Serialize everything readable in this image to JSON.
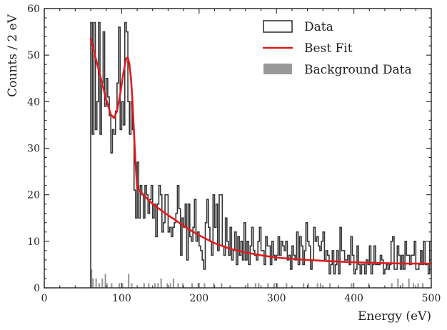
{
  "chart_data": {
    "type": "histogram",
    "xlabel": "Energy (eV)",
    "ylabel": "Counts / 2 eV",
    "xlim": [
      0,
      500
    ],
    "ylim": [
      0,
      60
    ],
    "x_ticks": [
      0,
      100,
      200,
      300,
      400,
      500
    ],
    "y_ticks": [
      0,
      10,
      20,
      30,
      40,
      50,
      60
    ],
    "bin_width": 2,
    "legend": {
      "position": "top-right",
      "entries": [
        {
          "label": "Data",
          "style": "step"
        },
        {
          "label": "Best Fit",
          "style": "line"
        },
        {
          "label": "Background Data",
          "style": "patch"
        }
      ]
    },
    "colors": {
      "data": "#333333",
      "fit": "#e31a1c",
      "background": "#999999"
    },
    "data": {
      "name": "Data",
      "x_start": 60,
      "counts": [
        57,
        33,
        57,
        34,
        40,
        57,
        33,
        44,
        55,
        39,
        45,
        41,
        37,
        29,
        34,
        33,
        38,
        44,
        56,
        34,
        40,
        35,
        57,
        55,
        40,
        33,
        40,
        34,
        21,
        15,
        27,
        15,
        22,
        20,
        15,
        22,
        20,
        16,
        19,
        22,
        15,
        18,
        11,
        18,
        22,
        20,
        12,
        14,
        20,
        20,
        12,
        13,
        11,
        13,
        14,
        16,
        22,
        17,
        7,
        15,
        13,
        18,
        6,
        18,
        11,
        10,
        13,
        19,
        10,
        12,
        9,
        8,
        6,
        4,
        14,
        19,
        13,
        10,
        7,
        20,
        13,
        18,
        8,
        20,
        20,
        9,
        7,
        15,
        10,
        7,
        13,
        6,
        8,
        12,
        5,
        11,
        7,
        10,
        6,
        14,
        6,
        10,
        5,
        9,
        13,
        8,
        7,
        6,
        10,
        13,
        8,
        8,
        5,
        11,
        9,
        9,
        5,
        10,
        7,
        6,
        7,
        11,
        7,
        10,
        9,
        8,
        10,
        6,
        7,
        4,
        9,
        7,
        6,
        12,
        5,
        11,
        9,
        5,
        8,
        14,
        10,
        9,
        4,
        6,
        13,
        10,
        11,
        9,
        8,
        10,
        12,
        6,
        8,
        7,
        3,
        5,
        8,
        3,
        5,
        8,
        3,
        13,
        8,
        8,
        6,
        6,
        7,
        5,
        11,
        7,
        3,
        4,
        9,
        5,
        3,
        5,
        5,
        3,
        6,
        5,
        9,
        3,
        5,
        9,
        5,
        5,
        5,
        7,
        6,
        3,
        4,
        5,
        4,
        5,
        10,
        11,
        4,
        4,
        9,
        7,
        4,
        7,
        4,
        10,
        7,
        7,
        5,
        7,
        7,
        10,
        4,
        4,
        5,
        8,
        5,
        10,
        5,
        5,
        3,
        10
      ]
    },
    "background": {
      "name": "Background Data",
      "bins": [
        [
          60,
          4
        ],
        [
          62,
          2
        ],
        [
          66,
          2
        ],
        [
          70,
          1
        ],
        [
          74,
          2
        ],
        [
          78,
          3
        ],
        [
          80,
          1
        ],
        [
          86,
          1
        ],
        [
          96,
          1
        ],
        [
          100,
          1
        ],
        [
          108,
          3
        ],
        [
          112,
          1
        ],
        [
          128,
          1
        ],
        [
          134,
          1
        ],
        [
          142,
          1
        ],
        [
          146,
          1
        ],
        [
          150,
          2
        ],
        [
          158,
          1
        ],
        [
          162,
          1
        ],
        [
          166,
          2
        ],
        [
          172,
          1
        ],
        [
          178,
          1
        ],
        [
          190,
          1
        ],
        [
          198,
          1
        ],
        [
          206,
          1
        ],
        [
          218,
          1
        ],
        [
          228,
          1
        ],
        [
          262,
          1
        ],
        [
          272,
          1
        ],
        [
          276,
          1
        ],
        [
          288,
          1
        ],
        [
          296,
          1
        ],
        [
          300,
          1
        ],
        [
          312,
          1
        ],
        [
          334,
          1
        ],
        [
          340,
          1
        ],
        [
          352,
          1
        ],
        [
          356,
          1
        ],
        [
          368,
          1
        ],
        [
          396,
          1
        ],
        [
          418,
          1
        ],
        [
          448,
          1
        ],
        [
          456,
          2
        ],
        [
          462,
          1
        ],
        [
          470,
          2
        ],
        [
          476,
          1
        ],
        [
          482,
          1
        ],
        [
          488,
          1
        ]
      ]
    },
    "best_fit": {
      "name": "Best Fit",
      "x": [
        60,
        70,
        80,
        86,
        90,
        94,
        98,
        102,
        106,
        108,
        110,
        112,
        114,
        116,
        118,
        120,
        125,
        130,
        140,
        150,
        160,
        170,
        180,
        190,
        200,
        220,
        240,
        260,
        280,
        300,
        330,
        360,
        400,
        440,
        470,
        500
      ],
      "y": [
        53.5,
        47,
        40.5,
        37.2,
        36.5,
        38,
        41.5,
        46,
        49.3,
        49.5,
        48,
        45,
        40,
        33,
        26.5,
        21.5,
        20.5,
        19.7,
        18,
        16.8,
        15.6,
        14.5,
        13.3,
        12.3,
        11.3,
        9.6,
        8.4,
        7.6,
        7,
        6.5,
        6.1,
        5.8,
        5.5,
        5.3,
        5.2,
        5.2
      ]
    }
  }
}
